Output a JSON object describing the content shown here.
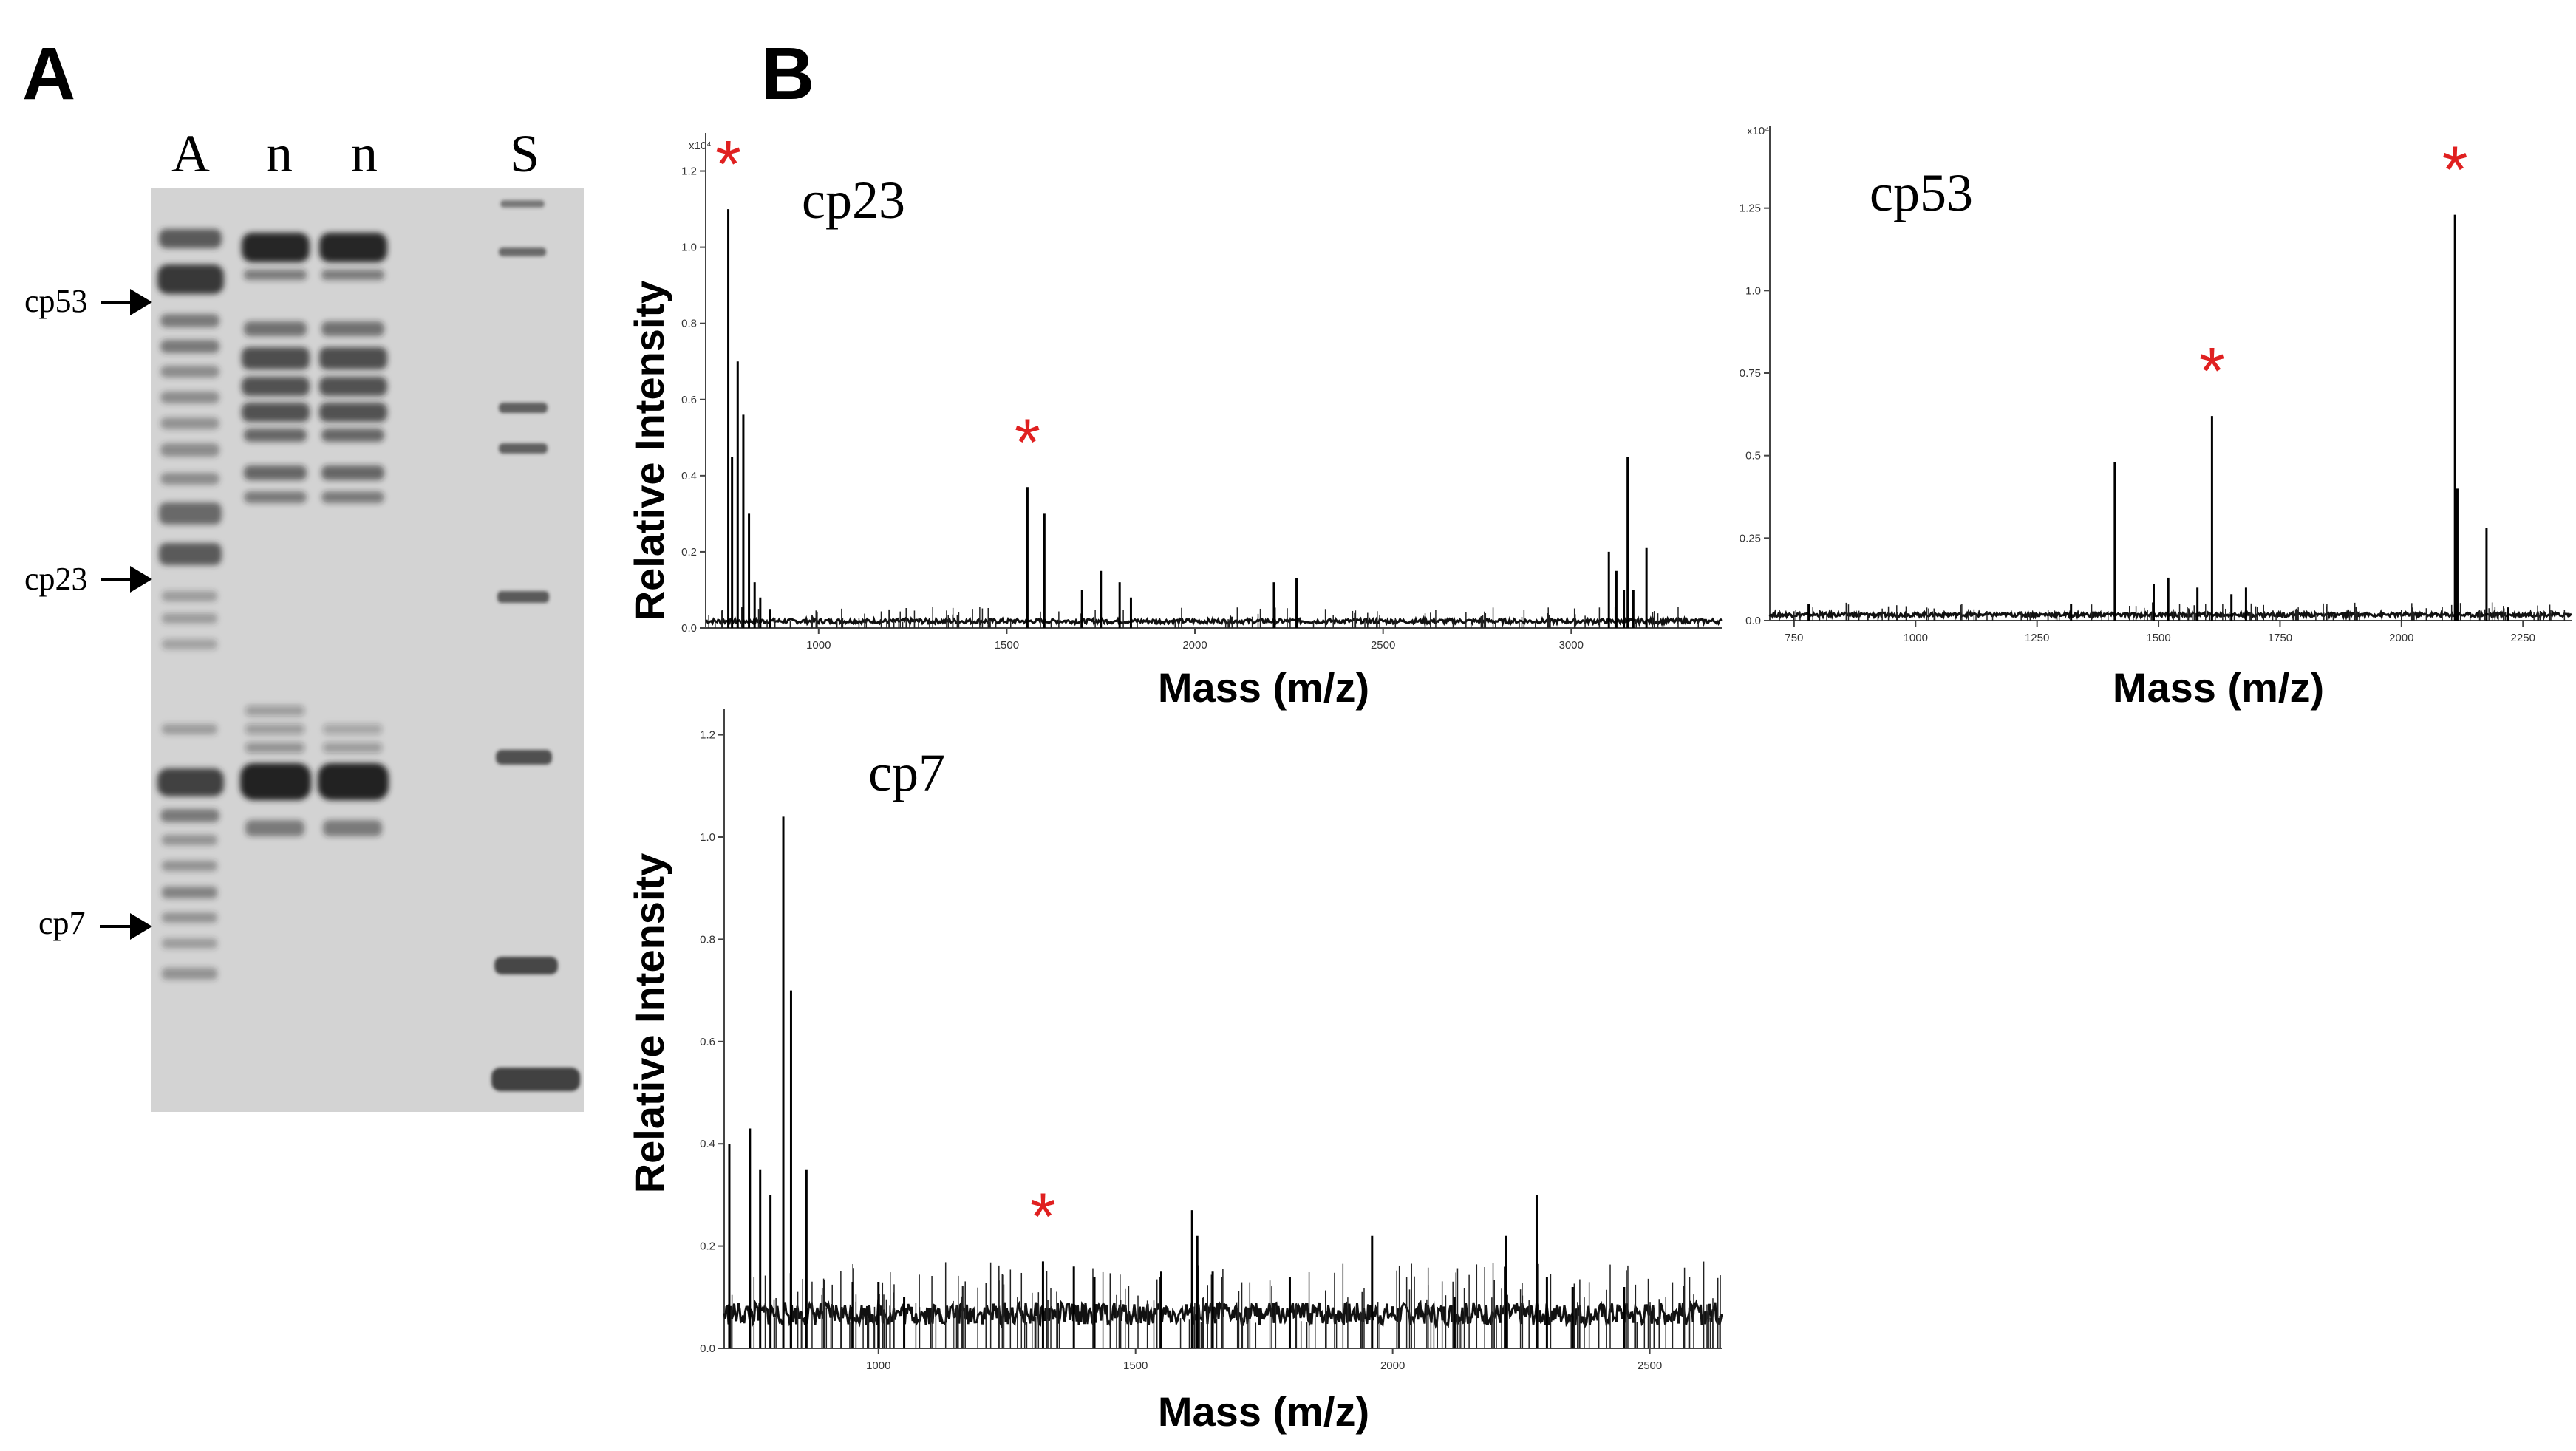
{
  "figure": {
    "panel_a_label": "A",
    "panel_b_label": "B"
  },
  "gel": {
    "lanes": [
      "A",
      "n",
      "n",
      "S"
    ],
    "bands": [
      "cp53",
      "cp23",
      "cp7"
    ]
  },
  "chart_data": [
    {
      "type": "line",
      "title": "cp23",
      "xlabel": "Mass (m/z)",
      "ylabel": "Relative Intensity",
      "xlim": [
        700,
        3400
      ],
      "ylim": [
        0,
        1.3
      ],
      "x_ticks": [
        1000,
        1500,
        2000,
        2500,
        3000
      ],
      "y_ticks": [
        0.0,
        0.2,
        0.4,
        0.6,
        0.8,
        1.0,
        1.2
      ],
      "y_multiplier": "x10⁴",
      "annotation": "*",
      "peaks_x": [
        760,
        770,
        785,
        800,
        815,
        830,
        845,
        870,
        1555,
        1600,
        1700,
        1750,
        1800,
        1830,
        2210,
        2270,
        3100,
        3120,
        3140,
        3150,
        3165,
        3200
      ],
      "peaks_y": [
        1.1,
        0.45,
        0.7,
        0.56,
        0.3,
        0.12,
        0.08,
        0.05,
        0.37,
        0.3,
        0.1,
        0.15,
        0.12,
        0.08,
        0.12,
        0.13,
        0.2,
        0.15,
        0.1,
        0.45,
        0.1,
        0.21
      ],
      "starred_peaks_x": [
        760,
        1555
      ]
    },
    {
      "type": "line",
      "title": "cp53",
      "xlabel": "Mass (m/z)",
      "ylabel": "",
      "xlim": [
        700,
        2350
      ],
      "ylim": [
        0,
        1.5
      ],
      "x_ticks": [
        750,
        1000,
        1250,
        1500,
        1750,
        2000,
        2250
      ],
      "y_ticks": [
        0.0,
        0.25,
        0.5,
        0.75,
        1.0,
        1.25
      ],
      "y_multiplier": "x10⁴",
      "annotation": "*",
      "peaks_x": [
        780,
        1320,
        1410,
        1490,
        1520,
        1580,
        1610,
        1650,
        1680,
        2110,
        2115,
        2175,
        2220
      ],
      "peaks_y": [
        0.05,
        0.05,
        0.48,
        0.11,
        0.13,
        0.1,
        0.62,
        0.08,
        0.1,
        1.23,
        0.4,
        0.28,
        0.04
      ],
      "starred_peaks_x": [
        1610,
        2110
      ]
    },
    {
      "type": "line",
      "title": "cp7",
      "xlabel": "Mass (m/z)",
      "ylabel": "Relative Intensity",
      "xlim": [
        700,
        2640
      ],
      "ylim": [
        0,
        1.25
      ],
      "x_ticks": [
        1000,
        1500,
        2000,
        2500
      ],
      "y_ticks": [
        0.0,
        0.2,
        0.4,
        0.6,
        0.8,
        1.0,
        1.2
      ],
      "y_multiplier": "",
      "annotation": "*",
      "peaks_x": [
        710,
        750,
        770,
        790,
        815,
        830,
        860,
        950,
        1000,
        1050,
        1320,
        1380,
        1420,
        1550,
        1610,
        1620,
        1650,
        1800,
        1960,
        2120,
        2220,
        2280,
        2300,
        2350,
        2450
      ],
      "peaks_y": [
        0.4,
        0.43,
        0.35,
        0.3,
        1.04,
        0.7,
        0.35,
        0.13,
        0.13,
        0.1,
        0.17,
        0.16,
        0.14,
        0.15,
        0.27,
        0.22,
        0.15,
        0.14,
        0.22,
        0.1,
        0.22,
        0.3,
        0.14,
        0.12,
        0.12
      ],
      "starred_peaks_x": [
        1320
      ]
    }
  ]
}
